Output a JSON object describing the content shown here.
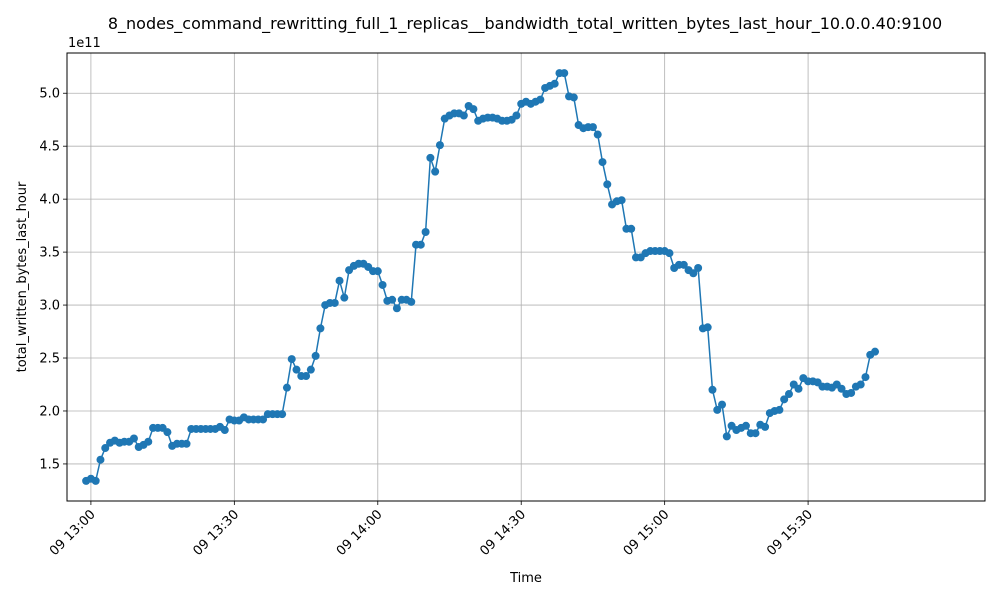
{
  "chart_data": {
    "type": "line",
    "title": "8_nodes_command_rewritting_full_1_replicas__bandwidth_total_written_bytes_last_hour_10.0.0.40:9100",
    "xlabel": "Time",
    "ylabel": "total_written_bytes_last_hour",
    "y_offset_label": "1e11",
    "xlim": [
      "09 12:55",
      "09 16:07"
    ],
    "ylim": [
      1.15,
      5.38
    ],
    "yticks": [
      1.5,
      2.0,
      2.5,
      3.0,
      3.5,
      4.0,
      4.5,
      5.0
    ],
    "ytick_labels": [
      "1.5",
      "2.0",
      "2.5",
      "3.0",
      "3.5",
      "4.0",
      "4.5",
      "5.0"
    ],
    "xticks": [
      "09 13:00",
      "09 13:30",
      "09 14:00",
      "09 14:30",
      "09 15:00",
      "09 15:30"
    ],
    "grid": true,
    "color": "#1f77b4",
    "series": [
      {
        "name": "",
        "start_time": "09 12:59",
        "interval_minutes": 1,
        "values": [
          1.34,
          1.36,
          1.34,
          1.54,
          1.65,
          1.7,
          1.72,
          1.7,
          1.71,
          1.71,
          1.74,
          1.66,
          1.68,
          1.71,
          1.84,
          1.84,
          1.84,
          1.8,
          1.67,
          1.69,
          1.69,
          1.69,
          1.83,
          1.83,
          1.83,
          1.83,
          1.83,
          1.83,
          1.85,
          1.82,
          1.92,
          1.91,
          1.91,
          1.94,
          1.92,
          1.92,
          1.92,
          1.92,
          1.97,
          1.97,
          1.97,
          1.97,
          2.22,
          2.49,
          2.39,
          2.33,
          2.33,
          2.39,
          2.52,
          2.78,
          3.0,
          3.02,
          3.02,
          3.23,
          3.07,
          3.33,
          3.37,
          3.39,
          3.39,
          3.36,
          3.32,
          3.32,
          3.19,
          3.04,
          3.05,
          2.97,
          3.05,
          3.05,
          3.03,
          3.57,
          3.57,
          3.69,
          4.39,
          4.26,
          4.51,
          4.76,
          4.79,
          4.81,
          4.81,
          4.79,
          4.88,
          4.85,
          4.74,
          4.76,
          4.77,
          4.77,
          4.76,
          4.74,
          4.74,
          4.75,
          4.79,
          4.9,
          4.92,
          4.9,
          4.92,
          4.94,
          5.05,
          5.07,
          5.09,
          5.19,
          5.19,
          4.97,
          4.96,
          4.7,
          4.67,
          4.68,
          4.68,
          4.61,
          4.35,
          4.14,
          3.95,
          3.98,
          3.99,
          3.72,
          3.72,
          3.45,
          3.45,
          3.49,
          3.51,
          3.51,
          3.51,
          3.51,
          3.49,
          3.35,
          3.38,
          3.38,
          3.33,
          3.3,
          3.35,
          2.78,
          2.79,
          2.2,
          2.01,
          2.06,
          1.76,
          1.86,
          1.82,
          1.84,
          1.86,
          1.79,
          1.79,
          1.87,
          1.85,
          1.98,
          2.0,
          2.01,
          2.11,
          2.16,
          2.25,
          2.21,
          2.31,
          2.28,
          2.28,
          2.27,
          2.23,
          2.23,
          2.22,
          2.25,
          2.21,
          2.16,
          2.17,
          2.23,
          2.25,
          2.32,
          2.53,
          2.56
        ]
      }
    ]
  }
}
